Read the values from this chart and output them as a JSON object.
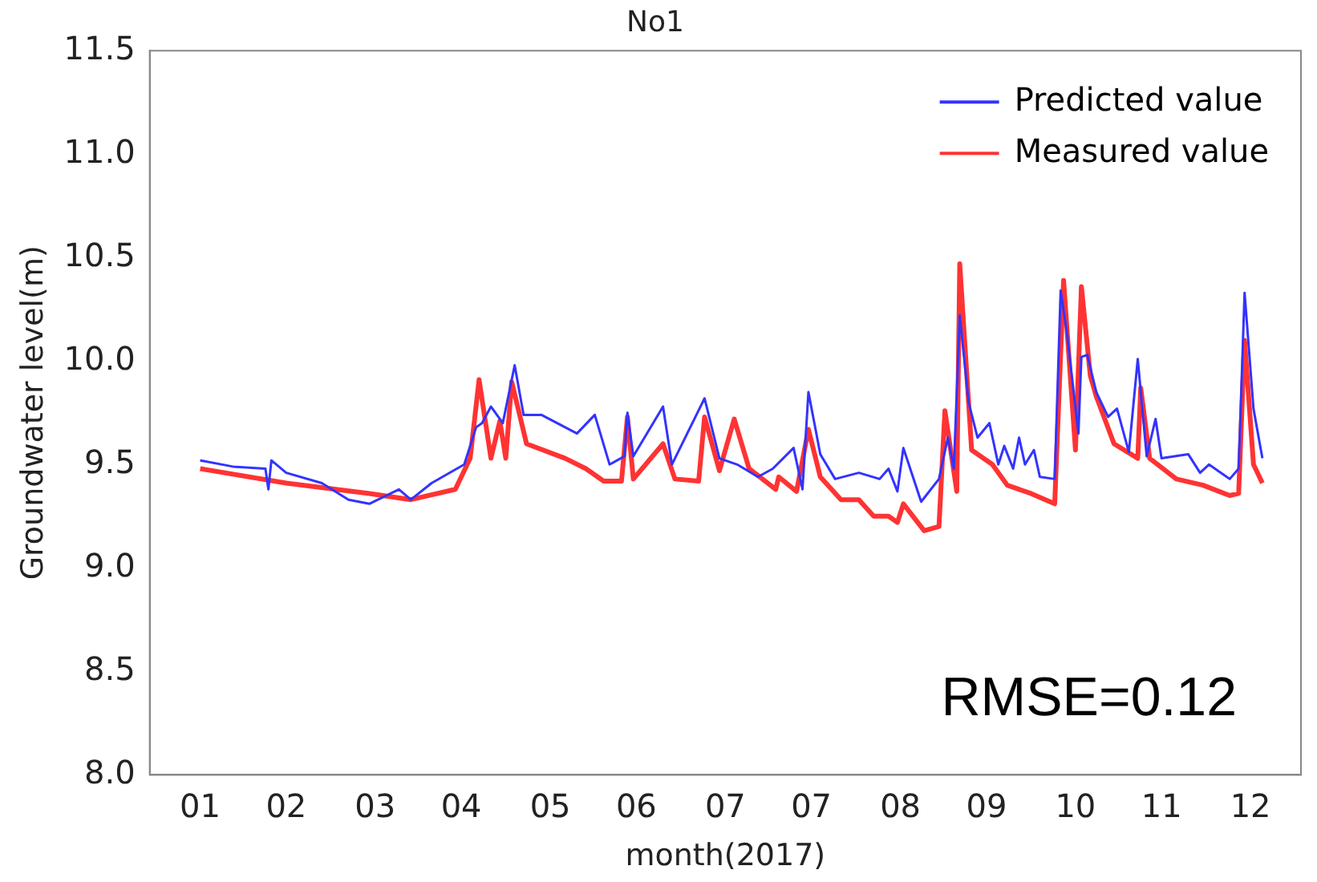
{
  "chart_data": {
    "type": "line",
    "title": "No1",
    "xlabel": "month(2017)",
    "ylabel": "Groundwater level(m)",
    "xlim": [
      "2016-12-19",
      "2018-01-11"
    ],
    "xticks": [
      {
        "value": "2017-01-05",
        "label": "01"
      },
      {
        "value": "2017-02-03",
        "label": "02"
      },
      {
        "value": "2017-03-05",
        "label": "03"
      },
      {
        "value": "2017-04-03",
        "label": "04"
      },
      {
        "value": "2017-05-03",
        "label": "05"
      },
      {
        "value": "2017-06-01",
        "label": "06"
      },
      {
        "value": "2017-07-01",
        "label": "07"
      },
      {
        "value": "2017-07-30",
        "label": "07"
      },
      {
        "value": "2017-08-29",
        "label": "08"
      },
      {
        "value": "2017-09-27",
        "label": "09"
      },
      {
        "value": "2017-10-27",
        "label": "10"
      },
      {
        "value": "2017-11-25",
        "label": "11"
      },
      {
        "value": "2017-12-25",
        "label": "12"
      }
    ],
    "ylim": [
      8,
      11.5
    ],
    "yticks": [
      {
        "value": 8,
        "label": "8.0"
      },
      {
        "value": 8.5,
        "label": "8.5"
      },
      {
        "value": 9,
        "label": "9.0"
      },
      {
        "value": 9.5,
        "label": "9.5"
      },
      {
        "value": 10,
        "label": "10.0"
      },
      {
        "value": 10.5,
        "label": "10.5"
      },
      {
        "value": 11,
        "label": "11.0"
      },
      {
        "value": 11.5,
        "label": "11.5"
      }
    ],
    "legend": "top right",
    "line_style": "solid",
    "annotations": [
      "RMSE=0.12"
    ],
    "series": [
      {
        "name": "Predicted value",
        "color": "#3333ff",
        "x": [
          "2017-01-05",
          "2017-01-16",
          "2017-01-27",
          "2017-01-28",
          "2017-01-29",
          "2017-02-03",
          "2017-02-15",
          "2017-02-24",
          "2017-03-03",
          "2017-03-13",
          "2017-03-17",
          "2017-03-24",
          "2017-04-04",
          "2017-04-08",
          "2017-04-10",
          "2017-04-13",
          "2017-04-17",
          "2017-04-21",
          "2017-04-24",
          "2017-04-30",
          "2017-05-12",
          "2017-05-18",
          "2017-05-23",
          "2017-05-28",
          "2017-05-29",
          "2017-05-31",
          "2017-06-10",
          "2017-06-13",
          "2017-06-24",
          "2017-06-29",
          "2017-07-05",
          "2017-07-12",
          "2017-07-17",
          "2017-07-24",
          "2017-07-27",
          "2017-07-29",
          "2017-08-02",
          "2017-08-07",
          "2017-08-15",
          "2017-08-22",
          "2017-08-25",
          "2017-08-28",
          "2017-08-30",
          "2017-09-05",
          "2017-09-11",
          "2017-09-14",
          "2017-09-16",
          "2017-09-18",
          "2017-09-21",
          "2017-09-24",
          "2017-09-28",
          "2017-10-01",
          "2017-10-03",
          "2017-10-06",
          "2017-10-08",
          "2017-10-10",
          "2017-10-13",
          "2017-10-15",
          "2017-10-20",
          "2017-10-22",
          "2017-10-24",
          "2017-10-28",
          "2017-10-29",
          "2017-10-31",
          "2017-11-03",
          "2017-11-07",
          "2017-11-10",
          "2017-11-14",
          "2017-11-17",
          "2017-11-20",
          "2017-11-23",
          "2017-11-25",
          "2017-12-04",
          "2017-12-08",
          "2017-12-11",
          "2017-12-18",
          "2017-12-21",
          "2017-12-23",
          "2017-12-26",
          "2017-12-29"
        ],
        "values": [
          9.52,
          9.49,
          9.48,
          9.38,
          9.52,
          9.46,
          9.41,
          9.33,
          9.31,
          9.38,
          9.33,
          9.41,
          9.5,
          9.68,
          9.7,
          9.78,
          9.7,
          9.98,
          9.74,
          9.74,
          9.65,
          9.74,
          9.5,
          9.54,
          9.75,
          9.54,
          9.78,
          9.5,
          9.82,
          9.53,
          9.5,
          9.44,
          9.48,
          9.58,
          9.38,
          9.85,
          9.55,
          9.43,
          9.46,
          9.43,
          9.48,
          9.37,
          9.58,
          9.32,
          9.43,
          9.63,
          9.48,
          10.22,
          9.8,
          9.63,
          9.7,
          9.5,
          9.59,
          9.48,
          9.63,
          9.5,
          9.57,
          9.44,
          9.43,
          10.34,
          10.15,
          9.65,
          10.02,
          10.03,
          9.85,
          9.73,
          9.77,
          9.56,
          10.01,
          9.54,
          9.72,
          9.53,
          9.55,
          9.46,
          9.5,
          9.43,
          9.48,
          10.33,
          9.77,
          9.53
        ]
      },
      {
        "name": "Measured value",
        "color": "#ff3333",
        "x": [
          "2017-01-05",
          "2017-02-03",
          "2017-03-03",
          "2017-03-17",
          "2017-04-01",
          "2017-04-06",
          "2017-04-09",
          "2017-04-13",
          "2017-04-16",
          "2017-04-18",
          "2017-04-20",
          "2017-04-25",
          "2017-05-08",
          "2017-05-15",
          "2017-05-21",
          "2017-05-27",
          "2017-05-29",
          "2017-05-31",
          "2017-06-10",
          "2017-06-14",
          "2017-06-22",
          "2017-06-24",
          "2017-06-29",
          "2017-07-04",
          "2017-07-09",
          "2017-07-18",
          "2017-07-19",
          "2017-07-25",
          "2017-07-29",
          "2017-08-02",
          "2017-08-09",
          "2017-08-15",
          "2017-08-20",
          "2017-08-25",
          "2017-08-28",
          "2017-08-30",
          "2017-09-06",
          "2017-09-11",
          "2017-09-13",
          "2017-09-17",
          "2017-09-18",
          "2017-09-22",
          "2017-09-29",
          "2017-10-04",
          "2017-10-12",
          "2017-10-20",
          "2017-10-23",
          "2017-10-27",
          "2017-10-29",
          "2017-11-01",
          "2017-11-03",
          "2017-11-09",
          "2017-11-17",
          "2017-11-18",
          "2017-11-21",
          "2017-11-30",
          "2017-12-09",
          "2017-12-18",
          "2017-12-21",
          "2017-12-23",
          "2017-12-26",
          "2017-12-29"
        ],
        "values": [
          9.48,
          9.41,
          9.36,
          9.33,
          9.38,
          9.53,
          9.91,
          9.53,
          9.71,
          9.53,
          9.9,
          9.6,
          9.53,
          9.48,
          9.42,
          9.42,
          9.73,
          9.43,
          9.6,
          9.43,
          9.42,
          9.73,
          9.47,
          9.72,
          9.48,
          9.38,
          9.44,
          9.37,
          9.67,
          9.44,
          9.33,
          9.33,
          9.25,
          9.25,
          9.22,
          9.31,
          9.18,
          9.2,
          9.76,
          9.37,
          10.47,
          9.57,
          9.5,
          9.4,
          9.36,
          9.31,
          10.39,
          9.57,
          10.36,
          9.93,
          9.83,
          9.6,
          9.53,
          9.87,
          9.53,
          9.43,
          9.4,
          9.35,
          9.36,
          10.1,
          9.5,
          9.41
        ]
      }
    ]
  }
}
